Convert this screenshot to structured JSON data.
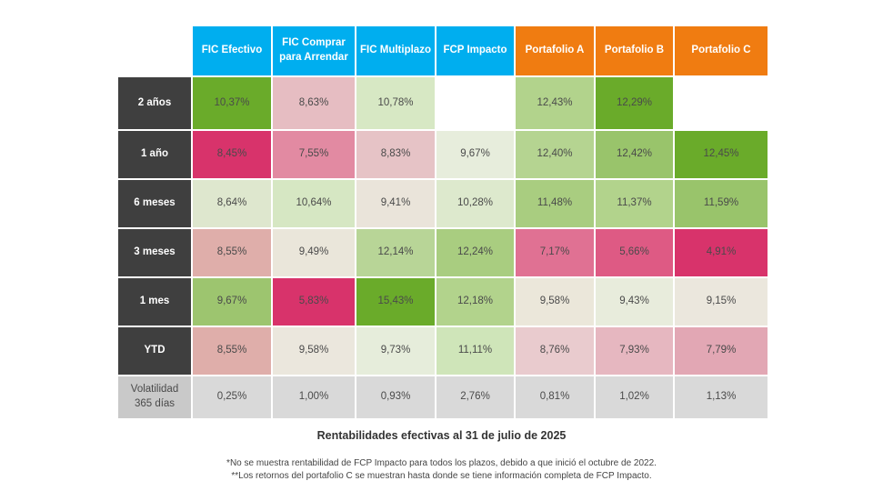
{
  "chart_data": {
    "type": "table",
    "title": "Rentabilidades efectivas al 31 de julio de 2025",
    "columns": [
      {
        "label": "FIC Efectivo",
        "color": "#00aeef"
      },
      {
        "label": "FIC Comprar para Arrendar",
        "color": "#00aeef"
      },
      {
        "label": "FIC Multiplazo",
        "color": "#00aeef"
      },
      {
        "label": "FCP Impacto",
        "color": "#00aeef"
      },
      {
        "label": "Portafolio A",
        "color": "#f07c11"
      },
      {
        "label": "Portafolio B",
        "color": "#f07c11"
      },
      {
        "label": "Portafolio C",
        "color": "#f07c11"
      }
    ],
    "rows": [
      {
        "label": "2 años",
        "cells": [
          {
            "text": "10,37%",
            "value": 10.37,
            "color": "#6aab2a"
          },
          {
            "text": "8,63%",
            "value": 8.63,
            "color": "#e6bdc2"
          },
          {
            "text": "10,78%",
            "value": 10.78,
            "color": "#d7e8c4"
          },
          {
            "text": "",
            "value": null,
            "color": "#ffffff"
          },
          {
            "text": "12,43%",
            "value": 12.43,
            "color": "#b2d38c"
          },
          {
            "text": "12,29%",
            "value": 12.29,
            "color": "#6aab2a"
          },
          {
            "text": "",
            "value": null,
            "color": "#ffffff"
          }
        ]
      },
      {
        "label": "1 año",
        "cells": [
          {
            "text": "8,45%",
            "value": 8.45,
            "color": "#d8336b"
          },
          {
            "text": "7,55%",
            "value": 7.55,
            "color": "#e28aa2"
          },
          {
            "text": "8,83%",
            "value": 8.83,
            "color": "#e6c3c6"
          },
          {
            "text": "9,67%",
            "value": 9.67,
            "color": "#e7eddc"
          },
          {
            "text": "12,40%",
            "value": 12.4,
            "color": "#b5d491"
          },
          {
            "text": "12,42%",
            "value": 12.42,
            "color": "#99c46b"
          },
          {
            "text": "12,45%",
            "value": 12.45,
            "color": "#6aab2a"
          }
        ]
      },
      {
        "label": "6 meses",
        "cells": [
          {
            "text": "8,64%",
            "value": 8.64,
            "color": "#dee7ce"
          },
          {
            "text": "10,64%",
            "value": 10.64,
            "color": "#d6e7c3"
          },
          {
            "text": "9,41%",
            "value": 9.41,
            "color": "#eae4da"
          },
          {
            "text": "10,28%",
            "value": 10.28,
            "color": "#dde9cd"
          },
          {
            "text": "11,48%",
            "value": 11.48,
            "color": "#a9cd80"
          },
          {
            "text": "11,37%",
            "value": 11.37,
            "color": "#b2d38c"
          },
          {
            "text": "11,59%",
            "value": 11.59,
            "color": "#99c46b"
          }
        ]
      },
      {
        "label": "3 meses",
        "cells": [
          {
            "text": "8,55%",
            "value": 8.55,
            "color": "#dfaeaa"
          },
          {
            "text": "9,49%",
            "value": 9.49,
            "color": "#eae6da"
          },
          {
            "text": "12,14%",
            "value": 12.14,
            "color": "#b8d597"
          },
          {
            "text": "12,24%",
            "value": 12.24,
            "color": "#a9cd80"
          },
          {
            "text": "7,17%",
            "value": 7.17,
            "color": "#e07193"
          },
          {
            "text": "5,66%",
            "value": 5.66,
            "color": "#de5a84"
          },
          {
            "text": "4,91%",
            "value": 4.91,
            "color": "#d8336b"
          }
        ]
      },
      {
        "label": "1 mes",
        "cells": [
          {
            "text": "9,67%",
            "value": 9.67,
            "color": "#9dc56f"
          },
          {
            "text": "5,83%",
            "value": 5.83,
            "color": "#d8336b"
          },
          {
            "text": "15,43%",
            "value": 15.43,
            "color": "#6aab2a"
          },
          {
            "text": "12,18%",
            "value": 12.18,
            "color": "#b2d38c"
          },
          {
            "text": "9,58%",
            "value": 9.58,
            "color": "#ebe7da"
          },
          {
            "text": "9,43%",
            "value": 9.43,
            "color": "#e8ecdc"
          },
          {
            "text": "9,15%",
            "value": 9.15,
            "color": "#ebe7dd"
          }
        ]
      },
      {
        "label": "YTD",
        "cells": [
          {
            "text": "8,55%",
            "value": 8.55,
            "color": "#dfaeaa"
          },
          {
            "text": "9,58%",
            "value": 9.58,
            "color": "#ebe7dd"
          },
          {
            "text": "9,73%",
            "value": 9.73,
            "color": "#e6eddb"
          },
          {
            "text": "11,11%",
            "value": 11.11,
            "color": "#cfe5b9"
          },
          {
            "text": "8,76%",
            "value": 8.76,
            "color": "#e9cbce"
          },
          {
            "text": "7,93%",
            "value": 7.93,
            "color": "#e6b7c0"
          },
          {
            "text": "7,79%",
            "value": 7.79,
            "color": "#e2a7b4"
          }
        ]
      },
      {
        "label": "Volatilidad 365 días",
        "is_volatility": true,
        "cells": [
          {
            "text": "0,25%",
            "value": 0.25,
            "color": "#d9d9d9"
          },
          {
            "text": "1,00%",
            "value": 1.0,
            "color": "#d9d9d9"
          },
          {
            "text": "0,93%",
            "value": 0.93,
            "color": "#d9d9d9"
          },
          {
            "text": "2,76%",
            "value": 2.76,
            "color": "#d9d9d9"
          },
          {
            "text": "0,81%",
            "value": 0.81,
            "color": "#d9d9d9"
          },
          {
            "text": "1,02%",
            "value": 1.02,
            "color": "#d9d9d9"
          },
          {
            "text": "1,13%",
            "value": 1.13,
            "color": "#d9d9d9"
          }
        ]
      }
    ],
    "notes": [
      "*No se muestra rentabilidad de FCP Impacto para todos los plazos, debido a que inició el octubre de 2022.",
      "**Los retornos del portafolio C se muestran hasta donde se tiene información completa de FCP Impacto."
    ]
  }
}
